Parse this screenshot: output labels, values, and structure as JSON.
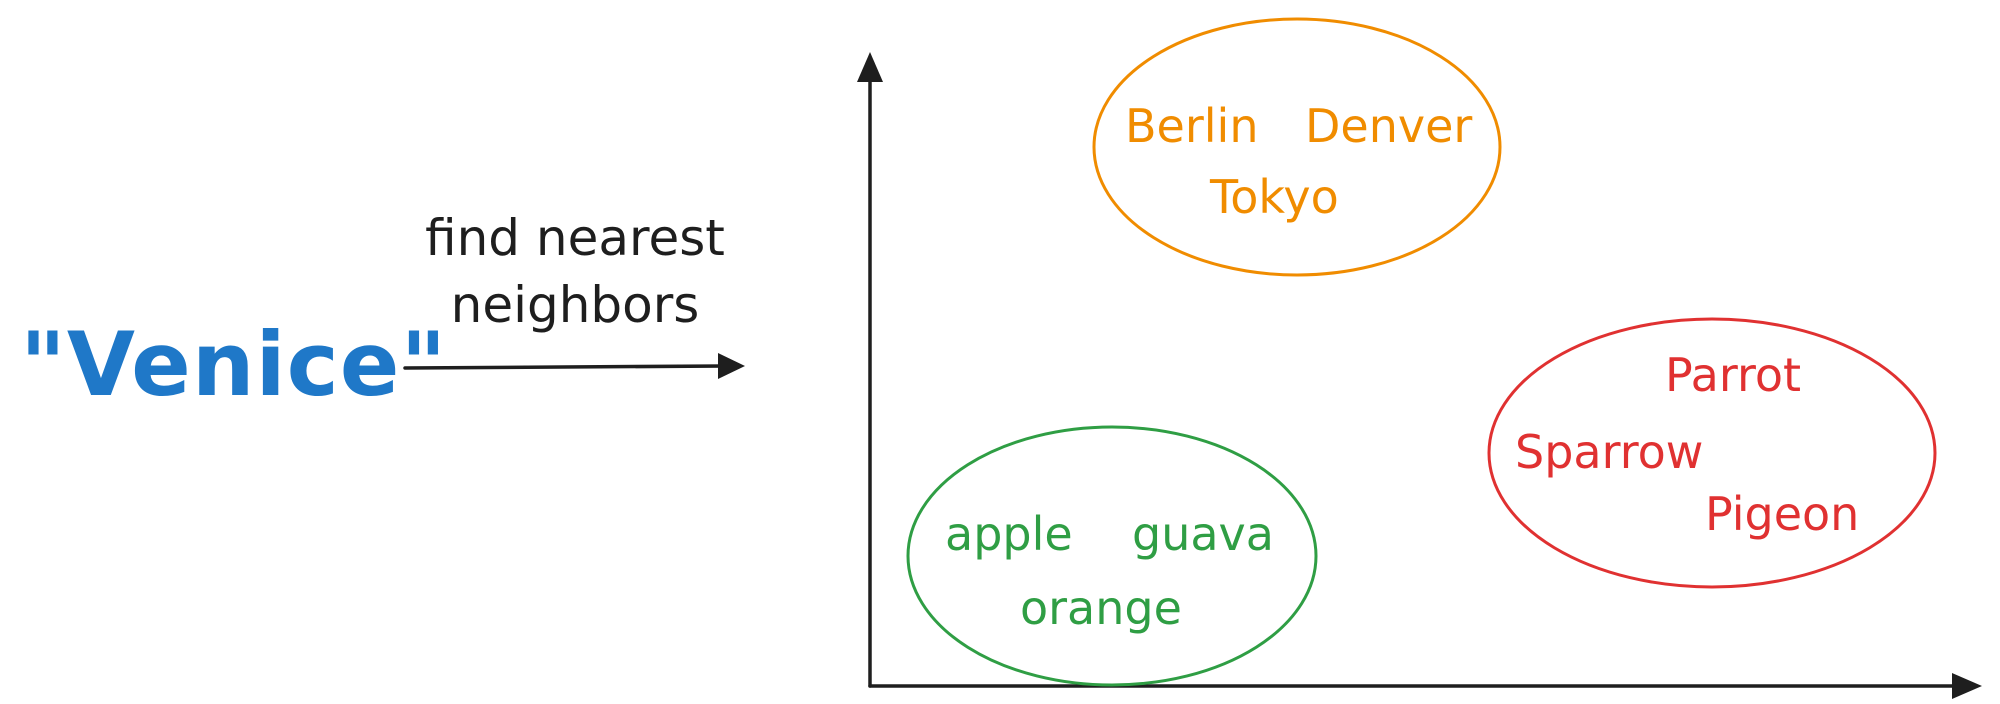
{
  "query": {
    "text": "\"Venice\"",
    "color": "#1f78c8"
  },
  "step": {
    "line1": "find nearest",
    "line2": "neighbors",
    "color": "#1e1e1e"
  },
  "axes": {
    "color": "#1e1e1e"
  },
  "clusters": {
    "cities": {
      "color": "#f08c00",
      "words": [
        "Berlin",
        "Denver",
        "Tokyo"
      ]
    },
    "birds": {
      "color": "#e03131",
      "words": [
        "Parrot",
        "Sparrow",
        "Pigeon"
      ]
    },
    "fruits": {
      "color": "#2f9e44",
      "words": [
        "apple",
        "guava",
        "orange"
      ]
    }
  }
}
